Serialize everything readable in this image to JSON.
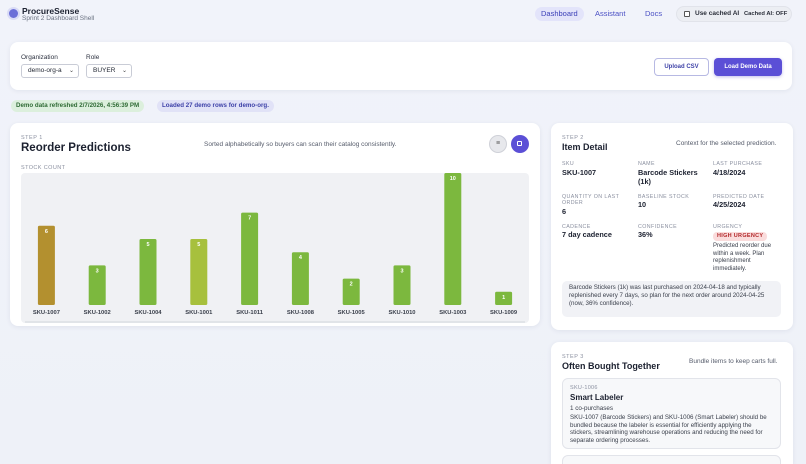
{
  "app": {
    "name": "ProcureSense",
    "subtitle": "Sprint 2 Dashboard Shell",
    "nav": [
      "Dashboard",
      "Assistant",
      "Docs"
    ],
    "cache_toggle_label": "Use cached AI",
    "cache_status": "Cached AI: OFF"
  },
  "controls": {
    "org_label": "Organization",
    "org_value": "demo-org-a",
    "role_label": "Role",
    "role_value": "BUYER",
    "upload_label": "Upload CSV",
    "load_label": "Load Demo Data"
  },
  "status": {
    "refreshed": "Demo data refreshed 2/7/2026, 4:56:39 PM",
    "loaded": "Loaded 27 demo rows for demo-org."
  },
  "predictions": {
    "step": "STEP 1",
    "title": "Reorder Predictions",
    "hint": "Sorted alphabetically so buyers can scan their catalog consistently.",
    "axis_label": "STOCK COUNT",
    "view_icon": "≡",
    "colors": {
      "selected": "#b3902f",
      "medium": "#a7c03d",
      "default": "#7cb83e",
      "bg": "#f0f1f4"
    }
  },
  "chart_data": {
    "type": "bar",
    "categories": [
      "SKU-1007",
      "SKU-1002",
      "SKU-1004",
      "SKU-1001",
      "SKU-1011",
      "SKU-1008",
      "SKU-1005",
      "SKU-1010",
      "SKU-1003",
      "SKU-1009"
    ],
    "values": [
      6,
      3,
      5,
      5,
      7,
      4,
      2,
      3,
      10,
      1
    ],
    "selected": "SKU-1007",
    "ylabel": "STOCK COUNT",
    "ylim": [
      0,
      10
    ]
  },
  "detail": {
    "step": "STEP 2",
    "title": "Item Detail",
    "hint": "Context for the selected prediction.",
    "sku_label": "SKU",
    "sku": "SKU-1007",
    "name_label": "NAME",
    "name": "Barcode Stickers (1k)",
    "last_purchase_label": "LAST PURCHASE",
    "last_purchase": "4/18/2024",
    "qty_label": "QUANTITY ON LAST ORDER",
    "qty": "6",
    "baseline_label": "BASELINE STOCK",
    "baseline": "10",
    "predicted_label": "PREDICTED DATE",
    "predicted": "4/25/2024",
    "cadence_label": "CADENCE",
    "cadence": "7 day cadence",
    "confidence_label": "CONFIDENCE",
    "confidence": "36%",
    "urgency_label": "URGENCY",
    "urgency": "HIGH URGENCY",
    "urgency_note": "Predicted reorder due within a week. Plan replenishment immediately.",
    "summary": "Barcode Stickers (1k) was last purchased on 2024-04-18 and typically replenished every 7 days, so plan for the next order around 2024-04-25 (now, 36% confidence)."
  },
  "bought_together": {
    "step": "STEP 3",
    "title": "Often Bought Together",
    "hint": "Bundle items to keep carts full.",
    "items": [
      {
        "sku": "SKU-1006",
        "name": "Smart Labeler",
        "count": "1 co-purchases",
        "reason": "SKU-1007 (Barcode Stickers) and SKU-1006 (Smart Labeler) should be bundled because the labeler is essential for efficiently applying the stickers, streamlining warehouse operations and reducing the need for separate ordering processes."
      }
    ]
  }
}
